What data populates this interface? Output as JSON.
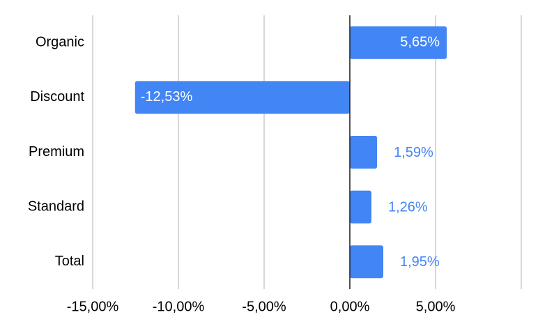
{
  "chart_data": {
    "type": "bar",
    "orientation": "horizontal",
    "categories": [
      "Organic",
      "Discount",
      "Premium",
      "Standard",
      "Total"
    ],
    "values": [
      5.65,
      -12.53,
      1.59,
      1.26,
      1.95
    ],
    "value_labels": [
      "5,65%",
      "-12,53%",
      "1,59%",
      "1,26%",
      "1,95%"
    ],
    "color": "#4285f4",
    "xlim": [
      -15,
      10
    ],
    "xticks": [
      {
        "value": -15,
        "label": "-15,00%"
      },
      {
        "value": -10,
        "label": "-10,00%"
      },
      {
        "value": -5,
        "label": "-5,00%"
      },
      {
        "value": 0,
        "label": "0,00%"
      },
      {
        "value": 5,
        "label": "5,00%"
      }
    ],
    "grid": true
  }
}
